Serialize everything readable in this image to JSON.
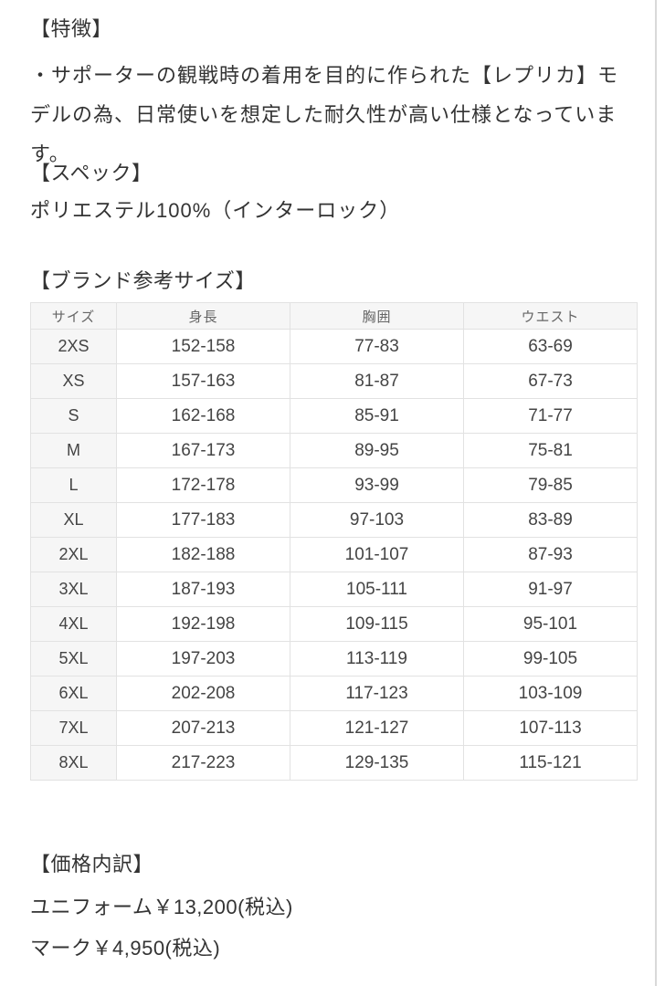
{
  "features": {
    "heading": "【特徴】",
    "body": "・サポーターの観戦時の着用を目的に作られた【レプリカ】モデルの為、日常使いを想定した耐久性が高い仕様となっています。"
  },
  "spec": {
    "heading": "【スペック】",
    "body": "ポリエステル100%（インターロック）"
  },
  "size_chart": {
    "heading": "【ブランド参考サイズ】",
    "columns": [
      "サイズ",
      "身長",
      "胸囲",
      "ウエスト"
    ],
    "rows": [
      [
        "2XS",
        "152-158",
        "77-83",
        "63-69"
      ],
      [
        "XS",
        "157-163",
        "81-87",
        "67-73"
      ],
      [
        "S",
        "162-168",
        "85-91",
        "71-77"
      ],
      [
        "M",
        "167-173",
        "89-95",
        "75-81"
      ],
      [
        "L",
        "172-178",
        "93-99",
        "79-85"
      ],
      [
        "XL",
        "177-183",
        "97-103",
        "83-89"
      ],
      [
        "2XL",
        "182-188",
        "101-107",
        "87-93"
      ],
      [
        "3XL",
        "187-193",
        "105-111",
        "91-97"
      ],
      [
        "4XL",
        "192-198",
        "109-115",
        "95-101"
      ],
      [
        "5XL",
        "197-203",
        "113-119",
        "99-105"
      ],
      [
        "6XL",
        "202-208",
        "117-123",
        "103-109"
      ],
      [
        "7XL",
        "207-213",
        "121-127",
        "107-113"
      ],
      [
        "8XL",
        "217-223",
        "129-135",
        "115-121"
      ]
    ]
  },
  "price": {
    "heading": "【価格内訳】",
    "lines": [
      "ユニフォーム￥13,200(税込)",
      "マーク￥4,950(税込)"
    ]
  },
  "colors": {
    "page_bg": "#ffffff",
    "text": "#333333",
    "table_cell_text": "#444444",
    "table_header_text": "#666666",
    "table_header_bg": "#f6f6f6",
    "table_border": "#e2e2e2",
    "right_rule": "#d9d9d9"
  }
}
